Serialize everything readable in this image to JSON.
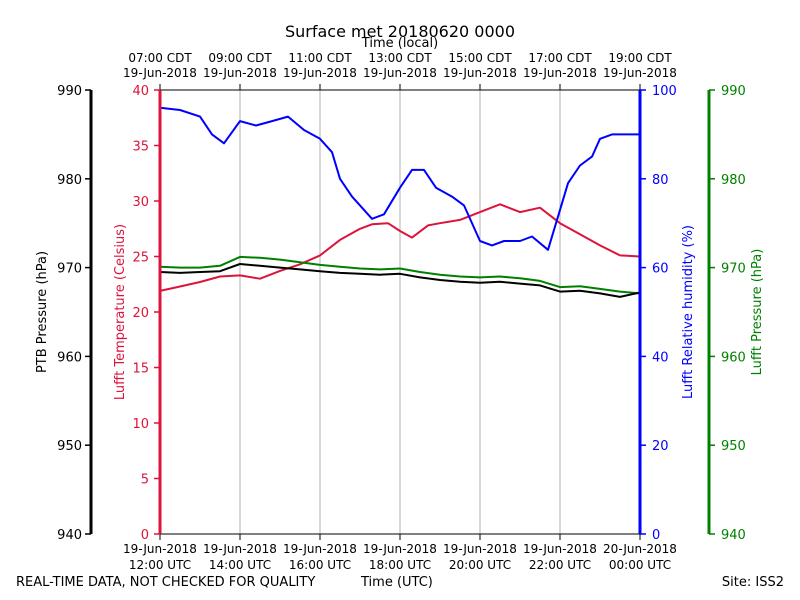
{
  "chart_data": {
    "type": "line",
    "title": "Surface met 20180620 0000",
    "xlabel": "Time (UTC)",
    "xlabel_top": "Time (local)",
    "x_range_hours_utc": [
      12,
      24
    ],
    "x_ticks_bottom": [
      {
        "date": "19-Jun-2018",
        "time": "12:00 UTC"
      },
      {
        "date": "19-Jun-2018",
        "time": "14:00 UTC"
      },
      {
        "date": "19-Jun-2018",
        "time": "16:00 UTC"
      },
      {
        "date": "19-Jun-2018",
        "time": "18:00 UTC"
      },
      {
        "date": "19-Jun-2018",
        "time": "20:00 UTC"
      },
      {
        "date": "19-Jun-2018",
        "time": "22:00 UTC"
      },
      {
        "date": "20-Jun-2018",
        "time": "00:00 UTC"
      }
    ],
    "x_ticks_top": [
      {
        "time": "07:00 CDT",
        "date": "19-Jun-2018"
      },
      {
        "time": "09:00 CDT",
        "date": "19-Jun-2018"
      },
      {
        "time": "11:00 CDT",
        "date": "19-Jun-2018"
      },
      {
        "time": "13:00 CDT",
        "date": "19-Jun-2018"
      },
      {
        "time": "15:00 CDT",
        "date": "19-Jun-2018"
      },
      {
        "time": "17:00 CDT",
        "date": "19-Jun-2018"
      },
      {
        "time": "19:00 CDT",
        "date": "19-Jun-2018"
      }
    ],
    "axes": {
      "ptb": {
        "label": "PTB Pressure (hPa)",
        "color": "#000000",
        "range": [
          940,
          990
        ],
        "ticks": [
          "940",
          "950",
          "960",
          "970",
          "980",
          "990"
        ]
      },
      "temp": {
        "label": "Lufft Temperature (Celsius)",
        "color": "#dc143c",
        "range": [
          0,
          40
        ],
        "ticks": [
          "0",
          "5",
          "10",
          "15",
          "20",
          "25",
          "30",
          "35",
          "40"
        ]
      },
      "rh": {
        "label": "Lufft Relative humidity (%)",
        "color": "#0000ff",
        "range": [
          0,
          100
        ],
        "ticks": [
          "0",
          "20",
          "40",
          "60",
          "80",
          "100"
        ]
      },
      "lp": {
        "label": "Lufft Pressure (hPa)",
        "color": "#008000",
        "range": [
          940,
          990
        ],
        "ticks": [
          "940",
          "950",
          "960",
          "970",
          "980",
          "990"
        ]
      }
    },
    "series": [
      {
        "name": "Lufft Temperature",
        "axis": "temp",
        "color": "#dc143c",
        "x": [
          12.0,
          12.5,
          13.0,
          13.5,
          14.0,
          14.5,
          15.0,
          15.5,
          16.0,
          16.5,
          17.0,
          17.3,
          17.7,
          18.0,
          18.3,
          18.7,
          19.0,
          19.5,
          20.0,
          20.5,
          21.0,
          21.5,
          22.0,
          22.5,
          23.0,
          23.5,
          24.0
        ],
        "y": [
          21.9,
          22.3,
          22.7,
          23.2,
          23.3,
          23.0,
          23.7,
          24.3,
          25.1,
          26.5,
          27.5,
          27.9,
          28.0,
          27.3,
          26.7,
          27.8,
          28.0,
          28.3,
          29.0,
          29.7,
          29.0,
          29.4,
          28.0,
          27.0,
          26.0,
          25.1,
          25.0
        ]
      },
      {
        "name": "Lufft Relative humidity",
        "axis": "rh",
        "color": "#0000ff",
        "x": [
          12.0,
          12.5,
          13.0,
          13.3,
          13.6,
          14.0,
          14.4,
          14.8,
          15.2,
          15.6,
          16.0,
          16.3,
          16.5,
          16.8,
          17.0,
          17.3,
          17.6,
          18.0,
          18.3,
          18.6,
          18.9,
          19.3,
          19.6,
          20.0,
          20.3,
          20.6,
          21.0,
          21.3,
          21.7,
          22.0,
          22.2,
          22.5,
          22.8,
          23.0,
          23.3,
          23.6,
          24.0
        ],
        "y": [
          96,
          95.5,
          94,
          90,
          88,
          93,
          92,
          93,
          94,
          91,
          89,
          86,
          80,
          76,
          74,
          71,
          72,
          78,
          82,
          82,
          78,
          76,
          74,
          66,
          65,
          66,
          66,
          67,
          64,
          73,
          79,
          83,
          85,
          89,
          90,
          90,
          90
        ]
      },
      {
        "name": "Lufft Pressure",
        "axis": "lp",
        "color": "#008000",
        "x": [
          12.0,
          12.5,
          13.0,
          13.5,
          14.0,
          14.5,
          15.0,
          15.5,
          16.0,
          16.5,
          17.0,
          17.5,
          18.0,
          18.5,
          19.0,
          19.5,
          20.0,
          20.5,
          21.0,
          21.5,
          22.0,
          22.5,
          23.0,
          23.5,
          24.0
        ],
        "y": [
          970.1,
          970.0,
          970.0,
          970.2,
          971.2,
          971.1,
          970.9,
          970.6,
          970.3,
          970.1,
          969.9,
          969.8,
          969.9,
          969.5,
          969.2,
          969.0,
          968.9,
          969.0,
          968.8,
          968.5,
          967.8,
          967.9,
          967.6,
          967.3,
          967.1
        ]
      },
      {
        "name": "PTB Pressure",
        "axis": "ptb",
        "color": "#000000",
        "x": [
          12.0,
          12.5,
          13.0,
          13.5,
          14.0,
          14.5,
          15.0,
          15.5,
          16.0,
          16.5,
          17.0,
          17.5,
          18.0,
          18.5,
          19.0,
          19.5,
          20.0,
          20.5,
          21.0,
          21.5,
          22.0,
          22.5,
          23.0,
          23.5,
          24.0
        ],
        "y": [
          969.5,
          969.4,
          969.5,
          969.6,
          970.4,
          970.2,
          970.0,
          969.8,
          969.6,
          969.4,
          969.3,
          969.2,
          969.3,
          968.9,
          968.6,
          968.4,
          968.3,
          968.4,
          968.2,
          968.0,
          967.3,
          967.4,
          967.1,
          966.7,
          967.2
        ]
      }
    ]
  },
  "footer": {
    "left": "REAL-TIME DATA, NOT CHECKED FOR QUALITY",
    "middle": "Time (UTC)",
    "right": "Site: ISS2"
  }
}
